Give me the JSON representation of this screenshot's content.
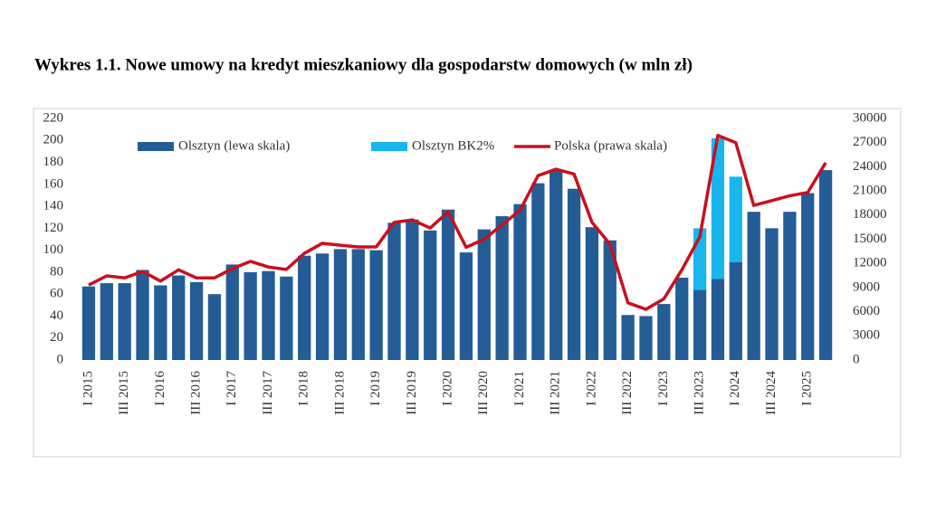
{
  "chart_data": {
    "type": "bar",
    "title": "Wykres 1.1. Nowe umowy na kredyt mieszkaniowy dla gospodarstw domowych (w mln zł)",
    "categories": [
      "I 2015",
      null,
      "III 2015",
      null,
      "I 2016",
      null,
      "III 2016",
      null,
      "I 2017",
      null,
      "III 2017",
      null,
      "I 2018",
      null,
      "III 2018",
      null,
      "I 2019",
      null,
      "III 2019",
      null,
      "I 2020",
      null,
      "III 2020",
      null,
      "I 2021",
      null,
      "III 2021",
      null,
      "I 2022",
      null,
      "III 2022",
      null,
      "I 2023",
      null,
      "III 2023",
      null,
      "I 2024",
      null,
      "III 2024",
      null,
      "I 2025",
      null
    ],
    "series": [
      {
        "name": "Olsztyn (lewa skala)",
        "color": "#245d96",
        "stack": true,
        "values": [
          67,
          70,
          70,
          82,
          68,
          77,
          71,
          60,
          87,
          80,
          81,
          76,
          95,
          97,
          101,
          101,
          100,
          125,
          128,
          118,
          137,
          98,
          119,
          131,
          142,
          161,
          173,
          156,
          121,
          109,
          41,
          40,
          51,
          75,
          64,
          74,
          89,
          135,
          120,
          135,
          152,
          173
        ]
      },
      {
        "name": "Olsztyn BK2%",
        "color": "#19b6ee",
        "stack": true,
        "values": [
          null,
          null,
          null,
          null,
          null,
          null,
          null,
          null,
          null,
          null,
          null,
          null,
          null,
          null,
          null,
          null,
          null,
          null,
          null,
          null,
          null,
          null,
          null,
          null,
          null,
          null,
          null,
          null,
          null,
          null,
          null,
          null,
          null,
          null,
          56,
          128,
          78,
          null,
          null,
          null,
          null,
          null
        ]
      },
      {
        "name": "Polska (prawa skala)",
        "color": "#c8101e",
        "type": "line",
        "axis": "y2",
        "values": [
          9300,
          10450,
          10200,
          11000,
          9800,
          11200,
          10200,
          10200,
          11350,
          12250,
          11550,
          11250,
          13250,
          14500,
          14250,
          14050,
          14050,
          17100,
          17400,
          16400,
          18400,
          14000,
          15000,
          16800,
          18600,
          22900,
          23700,
          23100,
          17100,
          14400,
          7100,
          6300,
          7600,
          11200,
          15300,
          27900,
          27000,
          19200,
          19800,
          20400,
          20800,
          24500
        ]
      }
    ],
    "ylim": [
      0,
      220
    ],
    "yticks": [
      0,
      20,
      40,
      60,
      80,
      100,
      120,
      140,
      160,
      180,
      200,
      220
    ],
    "y2lim": [
      0,
      30000
    ],
    "y2ticks": [
      0,
      3000,
      6000,
      9000,
      12000,
      15000,
      18000,
      21000,
      24000,
      27000,
      30000
    ],
    "grid": false,
    "legend": "top"
  }
}
